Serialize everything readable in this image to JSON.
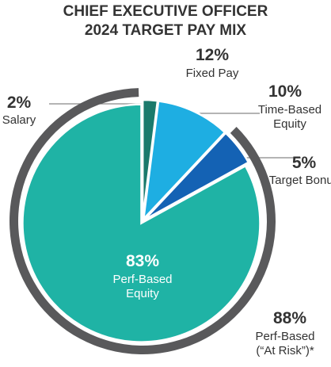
{
  "chart_data": {
    "type": "pie",
    "title": [
      "CHIEF EXECUTIVE OFFICER",
      "2024 TARGET PAY MIX"
    ],
    "categories": [
      "Salary",
      "Time-Based Equity",
      "Target Bonus",
      "Perf-Based Equity"
    ],
    "values": [
      2,
      10,
      5,
      83
    ],
    "value_labels": [
      "2%",
      "10%",
      "5%",
      "83%"
    ],
    "colors": [
      "#1b7a6c",
      "#1eaee2",
      "#1462b4",
      "#1fb3a5"
    ],
    "ring": {
      "categories": [
        "Fixed Pay",
        "Perf-Based (“At Risk”)*"
      ],
      "values": [
        12,
        88
      ],
      "value_labels": [
        "12%",
        "88%"
      ],
      "colors": [
        "transparent",
        "#59595b"
      ]
    }
  }
}
